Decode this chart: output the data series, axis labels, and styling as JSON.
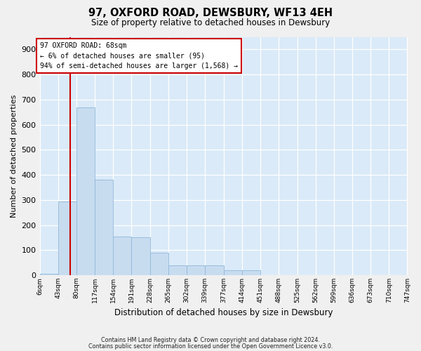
{
  "title": "97, OXFORD ROAD, DEWSBURY, WF13 4EH",
  "subtitle": "Size of property relative to detached houses in Dewsbury",
  "xlabel": "Distribution of detached houses by size in Dewsbury",
  "ylabel": "Number of detached properties",
  "bar_color": "#c8dcf0",
  "bar_edge_color": "#90b8d8",
  "property_line_color": "#cc0000",
  "property_size": 68,
  "annotation_line1": "97 OXFORD ROAD: 68sqm",
  "annotation_line2": "← 6% of detached houses are smaller (95)",
  "annotation_line3": "94% of semi-detached houses are larger (1,568) →",
  "annotation_box_color": "#ffffff",
  "annotation_box_edge": "#cc0000",
  "bin_edges": [
    6,
    43,
    80,
    117,
    154,
    191,
    228,
    265,
    302,
    339,
    377,
    414,
    451,
    488,
    525,
    562,
    599,
    636,
    673,
    710,
    747
  ],
  "bin_labels": [
    "6sqm",
    "43sqm",
    "80sqm",
    "117sqm",
    "154sqm",
    "191sqm",
    "228sqm",
    "265sqm",
    "302sqm",
    "339sqm",
    "377sqm",
    "414sqm",
    "451sqm",
    "488sqm",
    "525sqm",
    "562sqm",
    "599sqm",
    "636sqm",
    "673sqm",
    "710sqm",
    "747sqm"
  ],
  "bar_heights": [
    7,
    295,
    670,
    380,
    155,
    150,
    90,
    40,
    40,
    40,
    20,
    20,
    0,
    0,
    0,
    0,
    0,
    0,
    0,
    0
  ],
  "ylim": [
    0,
    950
  ],
  "yticks": [
    0,
    100,
    200,
    300,
    400,
    500,
    600,
    700,
    800,
    900
  ],
  "grid_color": "#ffffff",
  "plot_bg_color": "#daeaf8",
  "fig_bg_color": "#f0f0f0",
  "footer1": "Contains HM Land Registry data © Crown copyright and database right 2024.",
  "footer2": "Contains public sector information licensed under the Open Government Licence v3.0."
}
